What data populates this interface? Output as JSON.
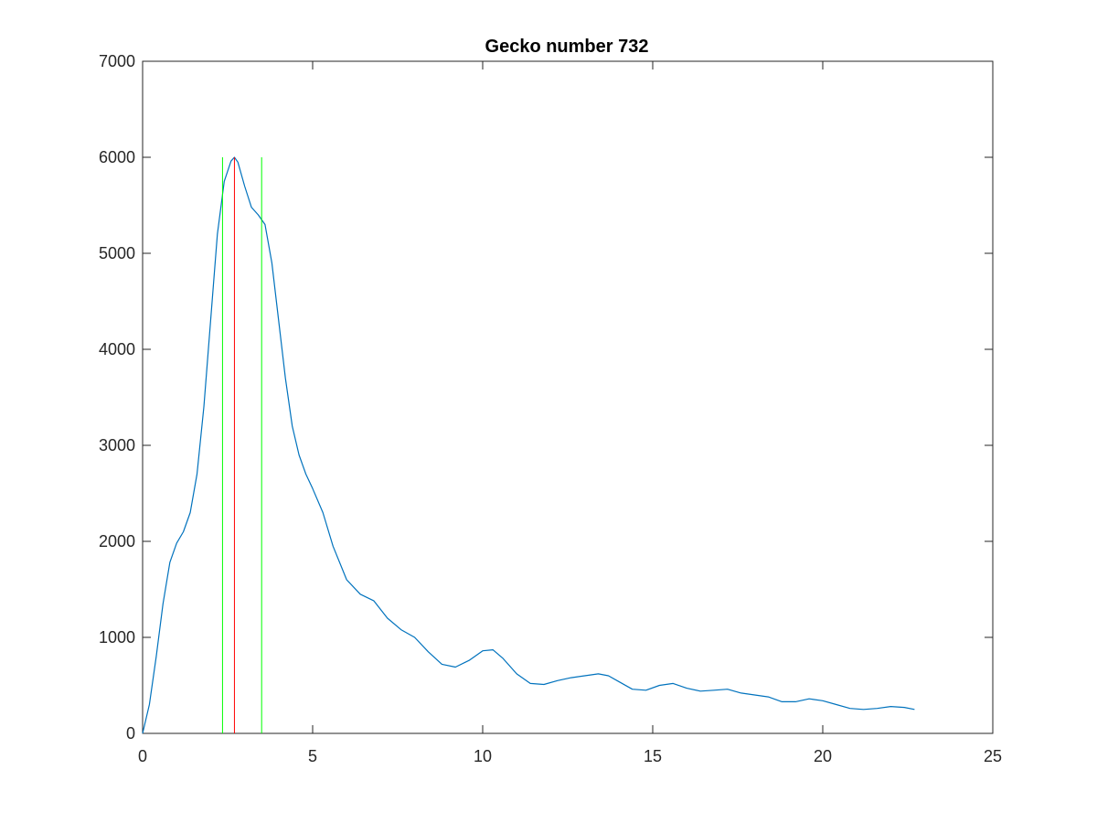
{
  "chart_data": {
    "type": "line",
    "title": "Gecko number 732",
    "xlabel": "",
    "ylabel": "",
    "xlim": [
      0,
      25
    ],
    "ylim": [
      0,
      7000
    ],
    "xticks": [
      0,
      5,
      10,
      15,
      20,
      25
    ],
    "yticks": [
      0,
      1000,
      2000,
      3000,
      4000,
      5000,
      6000,
      7000
    ],
    "xtick_labels": [
      "0",
      "5",
      "10",
      "15",
      "20",
      "25"
    ],
    "ytick_labels": [
      "0",
      "1000",
      "2000",
      "3000",
      "4000",
      "5000",
      "6000",
      "7000"
    ],
    "grid": false,
    "box": true,
    "series": [
      {
        "color": "#0072bd",
        "x": [
          0,
          0.2,
          0.4,
          0.6,
          0.8,
          1.0,
          1.2,
          1.4,
          1.6,
          1.8,
          2.0,
          2.2,
          2.4,
          2.6,
          2.7,
          2.8,
          3.0,
          3.2,
          3.4,
          3.6,
          3.8,
          4.0,
          4.2,
          4.4,
          4.6,
          4.8,
          5.0,
          5.3,
          5.6,
          6.0,
          6.4,
          6.8,
          7.2,
          7.6,
          8.0,
          8.4,
          8.8,
          9.2,
          9.6,
          10.0,
          10.3,
          10.6,
          11.0,
          11.4,
          11.8,
          12.2,
          12.6,
          13.0,
          13.4,
          13.7,
          14.0,
          14.4,
          14.8,
          15.2,
          15.6,
          16.0,
          16.4,
          16.8,
          17.2,
          17.6,
          18.0,
          18.4,
          18.8,
          19.2,
          19.6,
          20.0,
          20.4,
          20.8,
          21.2,
          21.6,
          22.0,
          22.4,
          22.7
        ],
        "y": [
          0,
          300,
          800,
          1350,
          1780,
          1980,
          2100,
          2300,
          2700,
          3400,
          4300,
          5200,
          5750,
          5960,
          6000,
          5950,
          5700,
          5480,
          5400,
          5300,
          4900,
          4300,
          3700,
          3200,
          2900,
          2700,
          2550,
          2300,
          1950,
          1600,
          1450,
          1380,
          1200,
          1080,
          1000,
          850,
          720,
          690,
          760,
          860,
          870,
          780,
          620,
          520,
          510,
          550,
          580,
          600,
          620,
          600,
          540,
          460,
          450,
          500,
          520,
          470,
          440,
          450,
          460,
          420,
          400,
          380,
          330,
          330,
          360,
          340,
          300,
          260,
          250,
          260,
          280,
          270,
          250
        ]
      }
    ],
    "vertical_lines": [
      {
        "x": 2.35,
        "y": [
          0,
          6000
        ],
        "color": "#00ff00"
      },
      {
        "x": 2.7,
        "y": [
          0,
          6000
        ],
        "color": "#ff0000"
      },
      {
        "x": 3.5,
        "y": [
          0,
          6000
        ],
        "color": "#00ff00"
      }
    ]
  }
}
